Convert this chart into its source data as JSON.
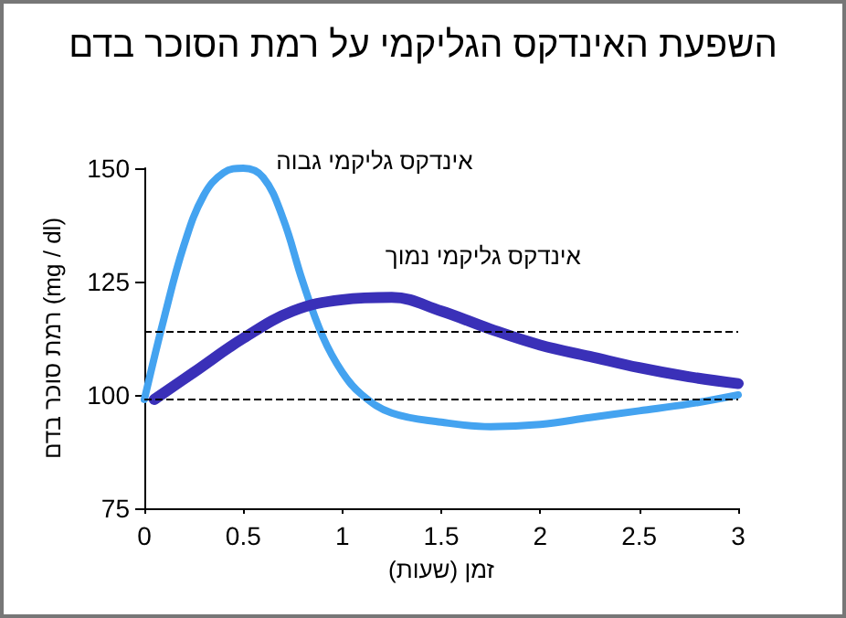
{
  "chart_data": {
    "type": "line",
    "title": "השפעת האינדקס הגליקמי על רמת הסוכר בדם",
    "xlabel": "זמן (שעות)",
    "ylabel": "רמת סוכר בדם (mg / dl)",
    "series": [
      {
        "name": "אינדקס גליקמי גבוה",
        "color": "#44a3f0",
        "x": [
          0,
          0.1,
          0.2,
          0.3,
          0.4,
          0.5,
          0.6,
          0.7,
          0.8,
          0.9,
          1.0,
          1.1,
          1.25,
          1.5,
          1.75,
          2,
          2.25,
          2.5,
          2.75,
          3
        ],
        "values": [
          99,
          117,
          133,
          144,
          149,
          150,
          148,
          139,
          125,
          113,
          105,
          100,
          96,
          94,
          93,
          93.5,
          95,
          96.5,
          98,
          100
        ]
      },
      {
        "name": "אינדקס גליקמי נמוך",
        "color": "#3a30b8",
        "x": [
          0.05,
          0.25,
          0.5,
          0.75,
          1.0,
          1.25,
          1.5,
          1.75,
          2,
          2.25,
          2.5,
          2.75,
          3
        ],
        "values": [
          99,
          105,
          112.5,
          118.5,
          121,
          121.5,
          118.5,
          114.5,
          111,
          108.5,
          106,
          104,
          102.5
        ]
      }
    ],
    "xlim": [
      0,
      3
    ],
    "xticks": [
      0,
      0.5,
      1,
      1.5,
      2,
      2.5,
      3
    ],
    "ylim": [
      75,
      150
    ],
    "yticks": [
      75,
      100,
      125,
      150
    ],
    "ref_lines": [
      {
        "axis": "y",
        "value": 114,
        "label": null,
        "color": "#000000",
        "line_style": "dashed"
      },
      {
        "axis": "y",
        "value": 99,
        "label": null,
        "color": "#000000",
        "line_style": "dashed"
      }
    ],
    "grid": false,
    "legend": false,
    "marker": "none",
    "line_style": "solid"
  }
}
